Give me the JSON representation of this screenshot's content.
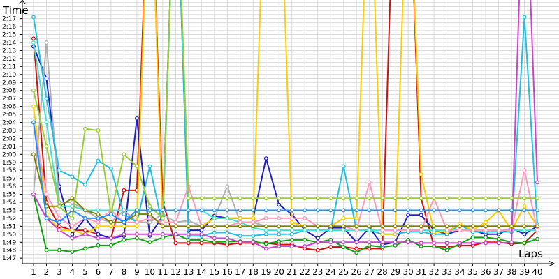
{
  "chart_data": {
    "type": "line",
    "ylabel": "Time",
    "xlabel": "Laps",
    "grid": true,
    "ylim": [
      106,
      139
    ],
    "xlim": [
      1,
      40
    ],
    "x": [
      1,
      2,
      3,
      4,
      5,
      6,
      7,
      8,
      9,
      10,
      11,
      12,
      13,
      14,
      15,
      16,
      17,
      18,
      19,
      20,
      21,
      22,
      23,
      24,
      25,
      26,
      27,
      28,
      29,
      30,
      31,
      32,
      33,
      34,
      35,
      36,
      37,
      38,
      39,
      40
    ],
    "y_ticks": [
      {
        "label": "1:47",
        "value": 107
      },
      {
        "label": "1:48",
        "value": 108
      },
      {
        "label": "1:49",
        "value": 109
      },
      {
        "label": "1:50",
        "value": 110
      },
      {
        "label": "1:51",
        "value": 111
      },
      {
        "label": "1:52",
        "value": 112
      },
      {
        "label": "1:53",
        "value": 113
      },
      {
        "label": "1:54",
        "value": 114
      },
      {
        "label": "1:55",
        "value": 115
      },
      {
        "label": "1:56",
        "value": 116
      },
      {
        "label": "1:57",
        "value": 117
      },
      {
        "label": "1:58",
        "value": 118
      },
      {
        "label": "1:59",
        "value": 119
      },
      {
        "label": "2:00",
        "value": 120
      },
      {
        "label": "2:01",
        "value": 121
      },
      {
        "label": "2:02",
        "value": 122
      },
      {
        "label": "2:03",
        "value": 123
      },
      {
        "label": "2:04",
        "value": 124
      },
      {
        "label": "2:05",
        "value": 125
      },
      {
        "label": "2:06",
        "value": 126
      },
      {
        "label": "2:07",
        "value": 127
      },
      {
        "label": "2:08",
        "value": 128
      },
      {
        "label": "2:09",
        "value": 129
      },
      {
        "label": "2:10",
        "value": 130
      },
      {
        "label": "2:11",
        "value": 131
      },
      {
        "label": "2:12",
        "value": 132
      },
      {
        "label": "2:13",
        "value": 133
      },
      {
        "label": "2:14",
        "value": 134
      },
      {
        "label": "2:15",
        "value": 135
      },
      {
        "label": "2:16",
        "value": 136
      },
      {
        "label": "2:17",
        "value": 137
      }
    ],
    "x_ticks": [
      "1",
      "2",
      "3",
      "4",
      "5",
      "6",
      "7",
      "8",
      "9",
      "10",
      "11",
      "12",
      "13",
      "14",
      "15",
      "16",
      "17",
      "18",
      "19",
      "20",
      "21",
      "22",
      "23",
      "24",
      "25",
      "26",
      "27",
      "28",
      "29",
      "30",
      "31",
      "32",
      "33",
      "34",
      "35",
      "36",
      "37",
      "38",
      "39",
      "40"
    ],
    "series": [
      {
        "color": "#d01010",
        "values": [
          134.5,
          114,
          111,
          110.5,
          110.5,
          110,
          109.5,
          115.5,
          115.5,
          160,
          114,
          108.9,
          108.9,
          108.9,
          108.9,
          108.7,
          108.9,
          108.9,
          108.9,
          108.7,
          108.7,
          108.2,
          108.0,
          108.4,
          108.4,
          108.2,
          108.2,
          108.2,
          160,
          160,
          114.5,
          108.5,
          108.4,
          108.6,
          108.6,
          109.0,
          109.0,
          108.8,
          108.9,
          110.5
        ]
      },
      {
        "color": "#10a010",
        "values": [
          115,
          108,
          108.0,
          107.8,
          108.2,
          108.6,
          108.6,
          109.3,
          109.5,
          109.0,
          109.6,
          110.0,
          109.3,
          109.3,
          109.0,
          109.1,
          109.1,
          109.1,
          108.8,
          109.1,
          109.3,
          109.3,
          109.0,
          109.3,
          108.4,
          107.7,
          108.6,
          108.4,
          108.6,
          109.3,
          108.5,
          108.5,
          108.0,
          108.8,
          109.6,
          109.6,
          109.4,
          109.0,
          108.9,
          109.4
        ]
      },
      {
        "color": "#2020c0",
        "values": [
          133.5,
          129.5,
          116,
          110,
          112,
          110,
          109.5,
          109.8,
          124.5,
          109.8,
          112.3,
          160,
          110.5,
          110.5,
          112.3,
          112.0,
          112.0,
          112.0,
          119.5,
          113.7,
          112.5,
          110.5,
          109.5,
          110.8,
          110.8,
          109.0,
          110.8,
          108.7,
          109.0,
          112.4,
          112.4,
          110.5,
          110.0,
          110.5,
          110.5,
          110.0,
          110.0,
          110.8,
          110.0,
          111.0
        ]
      },
      {
        "color": "#b0b0b0",
        "values": [
          115,
          134,
          114,
          114,
          113,
          112,
          111.5,
          113,
          111.5,
          111.5,
          112.5,
          111.5,
          111.7,
          111.0,
          112.0,
          116.0,
          111.5,
          111.5,
          111.0,
          111.0,
          111.0,
          111.0,
          111.0,
          111.0,
          111.0,
          111.0,
          111.0,
          111.0,
          111.0,
          111.0,
          111.0,
          111.0,
          111.0,
          111.0,
          111.0,
          111.0,
          111.0,
          111.0,
          111.0,
          111.0
        ]
      },
      {
        "color": "#20c0e0",
        "values": [
          137.2,
          127,
          118,
          117.2,
          116.2,
          119.2,
          118.2,
          112.5,
          111.5,
          118.5,
          111.0,
          160,
          109.8,
          109.8,
          110.2,
          110.2,
          109.8,
          109.8,
          110.0,
          110.0,
          110.0,
          110.5,
          110.5,
          110.5,
          118.5,
          110.5,
          110.5,
          110.0,
          110.0,
          110.3,
          110.3,
          110.0,
          110.0,
          111.2,
          110.3,
          110.3,
          110.3,
          110.3,
          137.2,
          111.2
        ]
      },
      {
        "color": "#ffcc00",
        "values": [
          126.0,
          112.5,
          110.5,
          110.5,
          110.0,
          111.0,
          111.0,
          111.0,
          111.0,
          160,
          111.0,
          111.0,
          111.0,
          111.0,
          112.0,
          112.0,
          112.0,
          112.0,
          160,
          160,
          111.5,
          111.0,
          111.0,
          111.0,
          112.0,
          112.0,
          160,
          110.0,
          110.0,
          160,
          117.5,
          110.3,
          110.3,
          111.3,
          110.5,
          111.5,
          113.0,
          110.5,
          113.5,
          111.0
        ]
      },
      {
        "color": "#40e0d0",
        "values": [
          134.0,
          124.0,
          113.5,
          113.5,
          113.0,
          113.0,
          113.0,
          113.0,
          113.0,
          113.0,
          113.0,
          113.0,
          113.0,
          113.0,
          112.0,
          112.0,
          111.5,
          110.8,
          110.5,
          110.5,
          110.5,
          110.5,
          110.5,
          110.5,
          110.5,
          110.5,
          110.5,
          110.5,
          110.5,
          110.5,
          110.5,
          110.5,
          110.5,
          110.5,
          110.5,
          110.5,
          110.5,
          110.5,
          110.5,
          110.5
        ]
      },
      {
        "color": "#ff99bb",
        "values": [
          124.0,
          115.0,
          112.0,
          111.0,
          112.0,
          111.5,
          113.0,
          111.5,
          111.5,
          112.0,
          111.5,
          111.5,
          116.0,
          111.0,
          111.0,
          111.0,
          111.5,
          111.5,
          112.0,
          112.0,
          112.0,
          112.0,
          111.0,
          111.0,
          111.0,
          110.5,
          116.5,
          110.5,
          110.5,
          110.5,
          110.5,
          114.5,
          110.5,
          110.5,
          110.5,
          110.5,
          110.5,
          110.5,
          118.0,
          110.5
        ]
      },
      {
        "color": "#cc44cc",
        "values": [
          115.0,
          112.0,
          110.5,
          109.5,
          110.0,
          109.5,
          109.5,
          110.0,
          110.0,
          110.0,
          110.0,
          110.0,
          110.0,
          110.0,
          109.5,
          109.5,
          109.0,
          109.0,
          108.2,
          108.5,
          108.5,
          108.5,
          109.0,
          109.0,
          109.0,
          109.0,
          109.0,
          109.0,
          109.0,
          109.0,
          108.9,
          108.9,
          108.9,
          108.9,
          108.9,
          108.9,
          108.9,
          109.0,
          160,
          116.5
        ]
      },
      {
        "color": "#808000",
        "values": [
          120.0,
          113.5,
          113.5,
          114.5,
          113.0,
          112.5,
          111.5,
          111.5,
          112.5,
          112.5,
          111.0,
          111.0,
          111.0,
          111.0,
          111.0,
          111.0,
          111.0,
          111.0,
          111.0,
          111.0,
          111.0,
          111.0,
          111.0,
          111.0,
          111.0,
          111.0,
          111.0,
          111.0,
          111.0,
          111.0,
          111.0,
          111.0,
          111.0,
          111.0,
          111.0,
          111.0,
          111.0,
          111.0,
          111.0,
          111.0
        ]
      },
      {
        "color": "#9acd32",
        "values": [
          128.0,
          121.0,
          113.5,
          112.0,
          123.2,
          123.0,
          112.5,
          120.0,
          118.5,
          113.5,
          112.0,
          160,
          114.5,
          114.5,
          114.5,
          114.5,
          114.5,
          114.5,
          114.5,
          114.5,
          114.5,
          114.5,
          114.5,
          114.5,
          114.5,
          114.5,
          114.5,
          114.5,
          114.5,
          114.5,
          114.5,
          114.5,
          114.5,
          114.5,
          114.5,
          114.5,
          114.5,
          114.5,
          114.5,
          114.5
        ]
      },
      {
        "color": "#1e90ff",
        "values": [
          124.0,
          112.0,
          111.5,
          113.0,
          112.0,
          112.0,
          112.5,
          111.5,
          113.0,
          113.0,
          113.0,
          113.0,
          113.0,
          113.0,
          113.0,
          113.0,
          113.0,
          113.0,
          113.0,
          113.0,
          113.0,
          113.0,
          113.0,
          113.0,
          113.0,
          113.0,
          113.0,
          113.0,
          113.0,
          113.0,
          113.0,
          113.0,
          113.0,
          113.0,
          113.0,
          113.0,
          113.0,
          113.0,
          113.0,
          113.0
        ]
      }
    ]
  }
}
